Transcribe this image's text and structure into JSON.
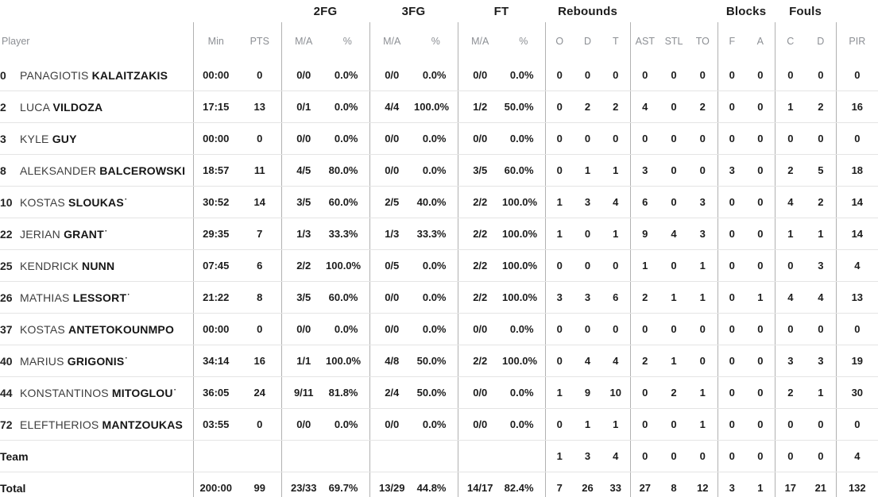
{
  "colors": {
    "background": "#ffffff",
    "header_text": "#1c1c1c",
    "subheader_text": "#8c8f94",
    "stat_text": "#1c1c1c",
    "vertical_divider": "#b1b1b1",
    "horizontal_divider": "#e4e4e4"
  },
  "table": {
    "group_headers": [
      {
        "label": ""
      },
      {
        "label": "2FG"
      },
      {
        "label": "3FG"
      },
      {
        "label": "FT"
      },
      {
        "label": "Rebounds"
      },
      {
        "label": ""
      },
      {
        "label": "Blocks"
      },
      {
        "label": "Fouls"
      },
      {
        "label": ""
      }
    ],
    "columns": [
      "Player",
      "Min",
      "PTS",
      "M/A",
      "%",
      "M/A",
      "%",
      "M/A",
      "%",
      "O",
      "D",
      "T",
      "AST",
      "STL",
      "TO",
      "F",
      "A",
      "C",
      "D",
      "PIR"
    ],
    "column_keys": [
      "min",
      "pts",
      "2fg-ma",
      "2fg-pct",
      "3fg-ma",
      "3fg-pct",
      "ft-ma",
      "ft-pct",
      "reb-off",
      "reb-def",
      "reb-total",
      "ast",
      "stl",
      "to",
      "blk-favor",
      "blk-against",
      "foul-committed",
      "foul-drawn",
      "pir"
    ],
    "starter_marker": "·",
    "rows": [
      {
        "num": "0",
        "first": "PANAGIOTIS",
        "last": "KALAITZAKIS",
        "starter": false,
        "stats": [
          "00:00",
          "0",
          "0/0",
          "0.0%",
          "0/0",
          "0.0%",
          "0/0",
          "0.0%",
          "0",
          "0",
          "0",
          "0",
          "0",
          "0",
          "0",
          "0",
          "0",
          "0",
          "0"
        ]
      },
      {
        "num": "2",
        "first": "LUCA",
        "last": "VILDOZA",
        "starter": false,
        "stats": [
          "17:15",
          "13",
          "0/1",
          "0.0%",
          "4/4",
          "100.0%",
          "1/2",
          "50.0%",
          "0",
          "2",
          "2",
          "4",
          "0",
          "2",
          "0",
          "0",
          "1",
          "2",
          "16"
        ]
      },
      {
        "num": "3",
        "first": "KYLE",
        "last": "GUY",
        "starter": false,
        "stats": [
          "00:00",
          "0",
          "0/0",
          "0.0%",
          "0/0",
          "0.0%",
          "0/0",
          "0.0%",
          "0",
          "0",
          "0",
          "0",
          "0",
          "0",
          "0",
          "0",
          "0",
          "0",
          "0"
        ]
      },
      {
        "num": "8",
        "first": "ALEKSANDER",
        "last": "BALCEROWSKI",
        "starter": false,
        "stats": [
          "18:57",
          "11",
          "4/5",
          "80.0%",
          "0/0",
          "0.0%",
          "3/5",
          "60.0%",
          "0",
          "1",
          "1",
          "3",
          "0",
          "0",
          "3",
          "0",
          "2",
          "5",
          "18"
        ]
      },
      {
        "num": "10",
        "first": "KOSTAS",
        "last": "SLOUKAS",
        "starter": true,
        "stats": [
          "30:52",
          "14",
          "3/5",
          "60.0%",
          "2/5",
          "40.0%",
          "2/2",
          "100.0%",
          "1",
          "3",
          "4",
          "6",
          "0",
          "3",
          "0",
          "0",
          "4",
          "2",
          "14"
        ]
      },
      {
        "num": "22",
        "first": "JERIAN",
        "last": "GRANT",
        "starter": true,
        "stats": [
          "29:35",
          "7",
          "1/3",
          "33.3%",
          "1/3",
          "33.3%",
          "2/2",
          "100.0%",
          "1",
          "0",
          "1",
          "9",
          "4",
          "3",
          "0",
          "0",
          "1",
          "1",
          "14"
        ]
      },
      {
        "num": "25",
        "first": "KENDRICK",
        "last": "NUNN",
        "starter": false,
        "stats": [
          "07:45",
          "6",
          "2/2",
          "100.0%",
          "0/5",
          "0.0%",
          "2/2",
          "100.0%",
          "0",
          "0",
          "0",
          "1",
          "0",
          "1",
          "0",
          "0",
          "0",
          "3",
          "4"
        ]
      },
      {
        "num": "26",
        "first": "MATHIAS",
        "last": "LESSORT",
        "starter": true,
        "stats": [
          "21:22",
          "8",
          "3/5",
          "60.0%",
          "0/0",
          "0.0%",
          "2/2",
          "100.0%",
          "3",
          "3",
          "6",
          "2",
          "1",
          "1",
          "0",
          "1",
          "4",
          "4",
          "13"
        ]
      },
      {
        "num": "37",
        "first": "KOSTAS",
        "last": "ANTETOKOUNMPO",
        "starter": false,
        "stats": [
          "00:00",
          "0",
          "0/0",
          "0.0%",
          "0/0",
          "0.0%",
          "0/0",
          "0.0%",
          "0",
          "0",
          "0",
          "0",
          "0",
          "0",
          "0",
          "0",
          "0",
          "0",
          "0"
        ]
      },
      {
        "num": "40",
        "first": "MARIUS",
        "last": "GRIGONIS",
        "starter": true,
        "stats": [
          "34:14",
          "16",
          "1/1",
          "100.0%",
          "4/8",
          "50.0%",
          "2/2",
          "100.0%",
          "0",
          "4",
          "4",
          "2",
          "1",
          "0",
          "0",
          "0",
          "3",
          "3",
          "19"
        ]
      },
      {
        "num": "44",
        "first": "KONSTANTINOS",
        "last": "MITOGLOU",
        "starter": true,
        "stats": [
          "36:05",
          "24",
          "9/11",
          "81.8%",
          "2/4",
          "50.0%",
          "0/0",
          "0.0%",
          "1",
          "9",
          "10",
          "0",
          "2",
          "1",
          "0",
          "0",
          "2",
          "1",
          "30"
        ]
      },
      {
        "num": "72",
        "first": "ELEFTHERIOS",
        "last": "MANTZOUKAS",
        "starter": false,
        "stats": [
          "03:55",
          "0",
          "0/0",
          "0.0%",
          "0/0",
          "0.0%",
          "0/0",
          "0.0%",
          "0",
          "1",
          "1",
          "0",
          "0",
          "1",
          "0",
          "0",
          "0",
          "0",
          "0"
        ]
      },
      {
        "label": "Team",
        "stats": [
          "",
          "",
          "",
          "",
          "",
          "",
          "",
          "",
          "1",
          "3",
          "4",
          "0",
          "0",
          "0",
          "0",
          "0",
          "0",
          "0",
          "4"
        ]
      },
      {
        "label": "Total",
        "total": true,
        "stats": [
          "200:00",
          "99",
          "23/33",
          "69.7%",
          "13/29",
          "44.8%",
          "14/17",
          "82.4%",
          "7",
          "26",
          "33",
          "27",
          "8",
          "12",
          "3",
          "1",
          "17",
          "21",
          "132"
        ]
      }
    ]
  }
}
